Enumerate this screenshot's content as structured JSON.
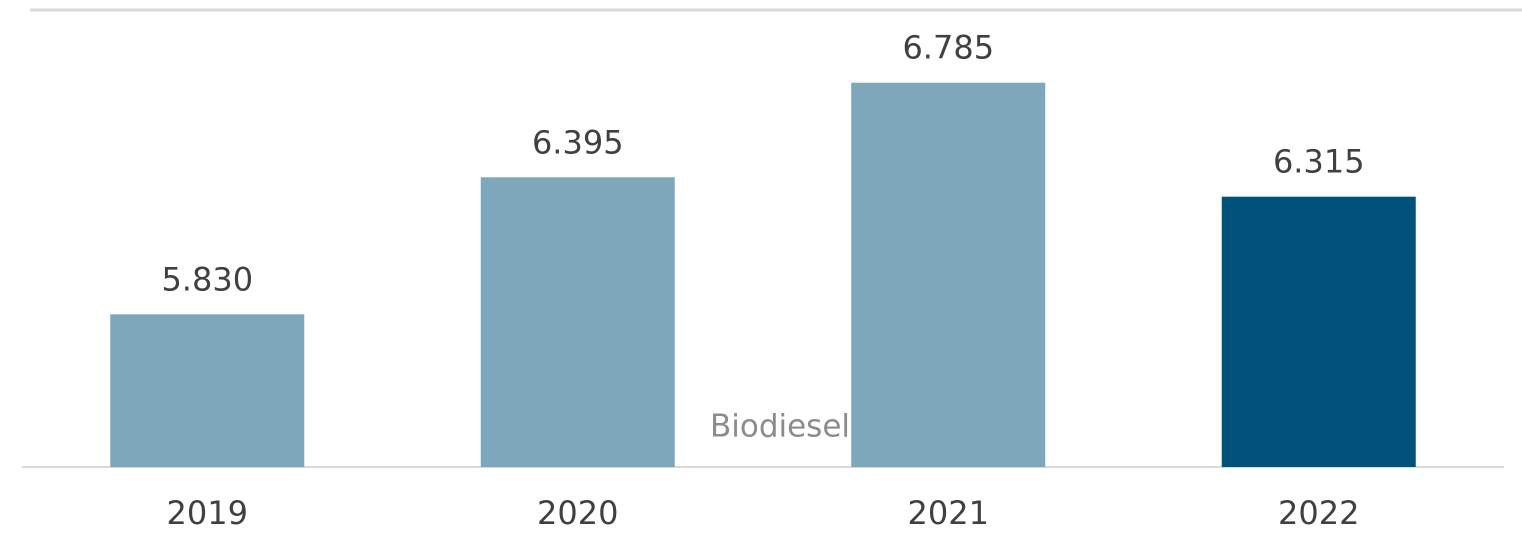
{
  "chart_data": {
    "type": "bar",
    "annotation": "Biodiesel",
    "categories": [
      "2019",
      "2020",
      "2021",
      "2022"
    ],
    "values": [
      5830,
      6395,
      6785,
      6315
    ],
    "value_labels": [
      "5.830",
      "6.395",
      "6.785",
      "6.315"
    ],
    "colors": [
      "#7fa7bc",
      "#7fa7bc",
      "#7fa7bc",
      "#00527a"
    ],
    "ylim": [
      5200,
      7085
    ]
  }
}
